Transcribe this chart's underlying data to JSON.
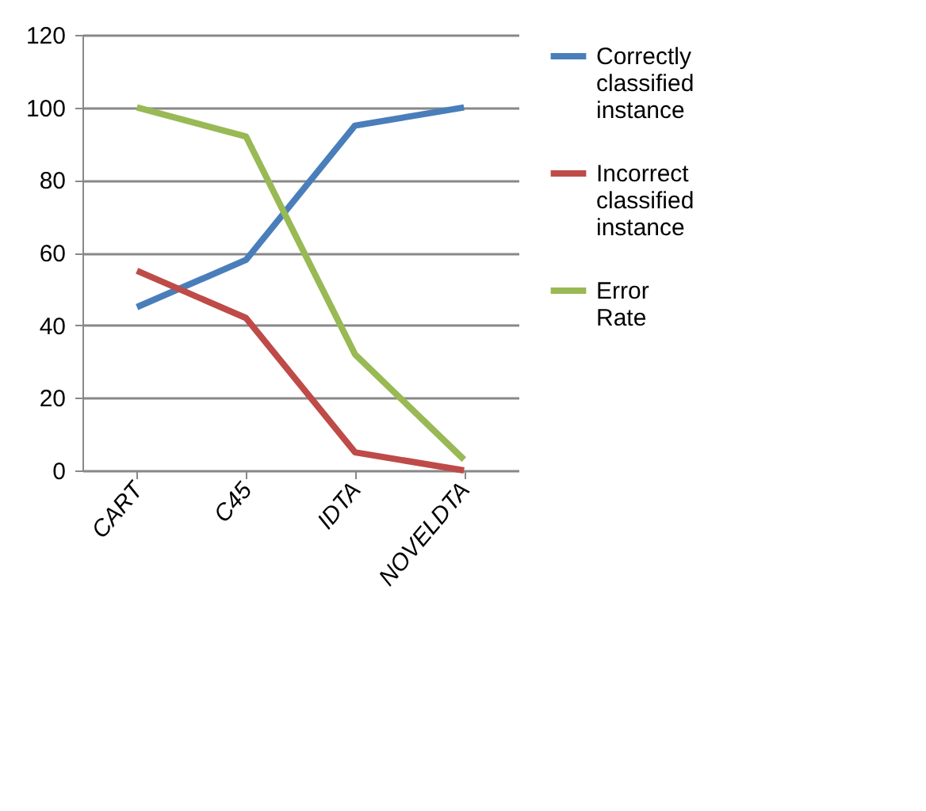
{
  "chart_data": {
    "type": "line",
    "categories": [
      "CART",
      "C45",
      "IDTA",
      "NOVELDTA"
    ],
    "series": [
      {
        "name": "Correctly classified instance",
        "color": "#4a7ebb",
        "values": [
          45,
          58,
          95,
          100
        ]
      },
      {
        "name": "Incorrect classified instance",
        "color": "#be4b48",
        "values": [
          55,
          42,
          5,
          0
        ]
      },
      {
        "name": "Error Rate",
        "color": "#98b954",
        "values": [
          100,
          92,
          32,
          3
        ]
      }
    ],
    "ylim": [
      0,
      120
    ],
    "yticks": [
      0,
      20,
      40,
      60,
      80,
      100,
      120
    ],
    "grid": "y",
    "legend": "right",
    "marker": "none",
    "line_style": "solid"
  }
}
